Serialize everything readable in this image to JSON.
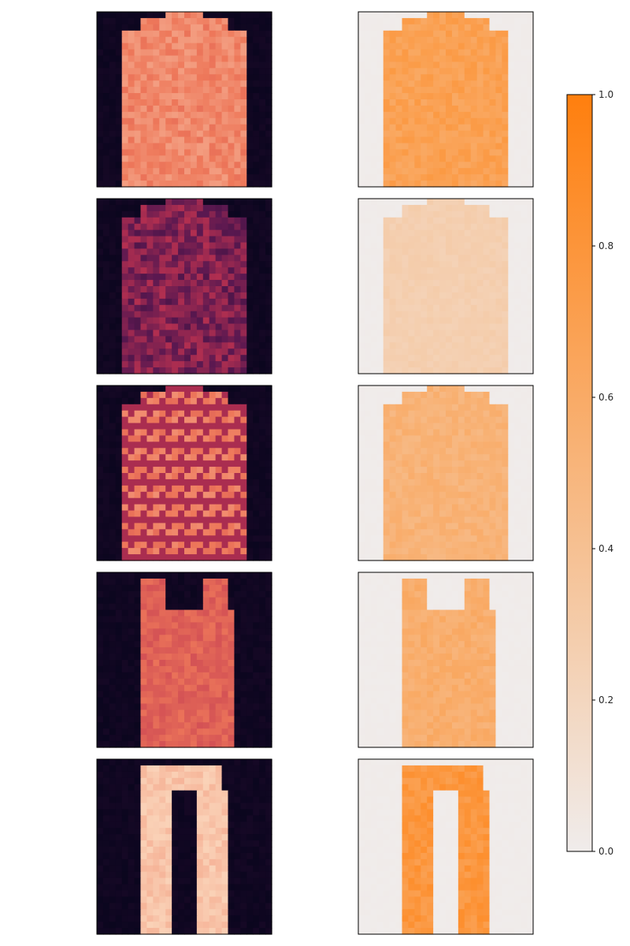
{
  "chart_data": {
    "type": "heatmap",
    "title": "",
    "layout": "5 rows x 2 columns of image panels with a shared colorbar at right",
    "left_column": {
      "colormap": "inferno-like (dark purple to pale peach)",
      "images": [
        "pullover",
        "shirt",
        "plaid shirt",
        "tank top",
        "trouser"
      ]
    },
    "right_column": {
      "colormap": "white to orange",
      "images": [
        "pullover",
        "shirt",
        "plaid shirt",
        "tank top",
        "trouser"
      ],
      "mean_intensity": [
        0.72,
        0.28,
        0.55,
        0.6,
        0.82
      ]
    },
    "colorbar": {
      "min": 0.0,
      "max": 1.0,
      "ticks": [
        "0.0",
        "0.2",
        "0.4",
        "0.6",
        "0.8",
        "1.0"
      ],
      "color_low": "#f0eceb",
      "color_high": "#ff7f0e"
    },
    "axes_ticks": "none"
  }
}
